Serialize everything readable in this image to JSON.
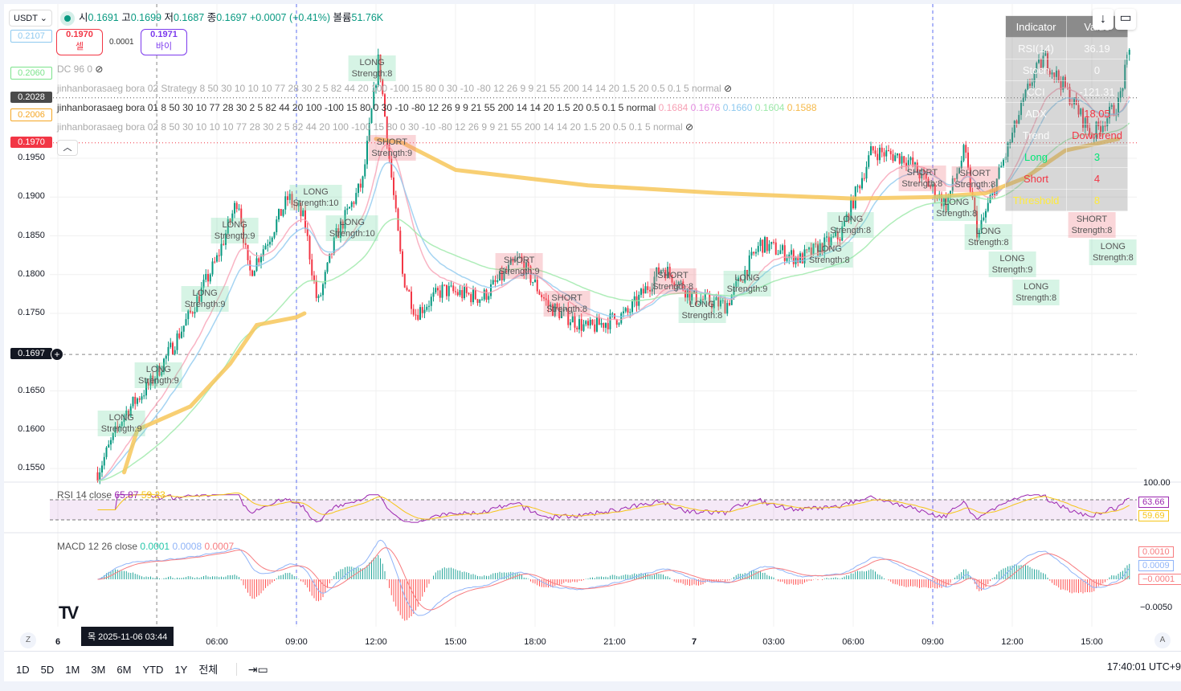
{
  "header": {
    "currency": "USDT",
    "open_label": "시",
    "open": "0.1691",
    "high_label": "고",
    "high": "0.1699",
    "low_label": "저",
    "low": "0.1687",
    "close_label": "종",
    "close": "0.1697",
    "change": "+0.0007 (+0.41%)",
    "volume_label": "볼륨",
    "volume": "51.76K"
  },
  "trade": {
    "sell_price": "0.1970",
    "sell_label": "셀",
    "spread": "0.0001",
    "buy_price": "0.1971",
    "buy_label": "바이"
  },
  "indicators": {
    "dc": "DC 96 0",
    "strategy2": "jinhanborasaeg bora 02 Strategy 8 50 30 10 10 10 77 28 30 2 5 82 44 20 100 -100 15 80 0 30 -10 -80 12 26 9 9 21 55 200 14 14 20 1.5 20 0.5 0.1 5 normal",
    "bora01": "jinhanborasaeg bora 01 8 50 30 10 77 28 30 2 5 82 44 20 100 -100 15 80 0 30 -10 -80 12 26 9 9 21 55 200 14 14 20 1.5 20 0.5 0.1 5 normal",
    "bora01_values": [
      {
        "v": "0.1684",
        "c": "#f7a1b5"
      },
      {
        "v": "0.1676",
        "c": "#e38be0"
      },
      {
        "v": "0.1660",
        "c": "#8ec9ef"
      },
      {
        "v": "0.1604",
        "c": "#9be8a8"
      },
      {
        "v": "0.1588",
        "c": "#f5b94a"
      }
    ],
    "bora02": "jinhanborasaeg bora 02 8 50 30 10 10 10 77 28 30 2 5 82 44 20 100 -100 15 80 0 30 -10 -80 12 26 9 9 21 55 200 14 14 20 1.5 20 0.5 0.1 5 normal"
  },
  "price_axis": {
    "ticks": [
      "0.1950",
      "0.1900",
      "0.1850",
      "0.1800",
      "0.1750",
      "0.1650",
      "0.1600",
      "0.1550"
    ],
    "badges": [
      {
        "v": "0.2107",
        "c": "#8ec9ef",
        "bg": "#fff"
      },
      {
        "v": "0.2060",
        "c": "#7be38b",
        "bg": "#fff"
      },
      {
        "v": "0.2028",
        "c": "#fff",
        "bg": "#4a4a4a"
      },
      {
        "v": "0.2006",
        "c": "#f5a623",
        "bg": "#fff"
      },
      {
        "v": "0.1970",
        "c": "#fff",
        "bg": "#f23645"
      },
      {
        "v": "0.1697",
        "c": "#fff",
        "bg": "#131722"
      }
    ]
  },
  "table": {
    "header": [
      "Indicator",
      "Value"
    ],
    "rows": [
      {
        "k": "RSI(14)",
        "v": "36.19",
        "c": "rgba(255,255,255,.9)"
      },
      {
        "k": "Stoch",
        "v": "0",
        "c": "rgba(255,255,255,.9)"
      },
      {
        "k": "CCI",
        "v": "-121.31",
        "c": "rgba(255,255,255,.9)"
      },
      {
        "k": "ADX",
        "v": "18.05",
        "c": "#f23645"
      },
      {
        "k": "Trend",
        "v": "Downtrend",
        "c": "#f23645",
        "kc": "rgba(255,255,255,.9)"
      },
      {
        "k": "Long",
        "v": "3",
        "c": "#00e676",
        "kc": "#00e676"
      },
      {
        "k": "Short",
        "v": "4",
        "c": "#f23645",
        "kc": "#f23645"
      },
      {
        "k": "Threshold",
        "v": "8",
        "c": "#ffeb3b",
        "kc": "#ffeb3b"
      }
    ]
  },
  "signals": [
    {
      "t": "LONG",
      "s": "Strength:9",
      "h": 2.4,
      "p": 0.1608
    },
    {
      "t": "LONG",
      "s": "Strength:9",
      "h": 3.8,
      "p": 0.167
    },
    {
      "t": "LONG",
      "s": "Strength:9",
      "h": 5.55,
      "p": 0.1769
    },
    {
      "t": "LONG",
      "s": "Strength:9",
      "h": 6.67,
      "p": 0.1857
    },
    {
      "t": "LONG",
      "s": "Strength:10",
      "h": 9.73,
      "p": 0.1899
    },
    {
      "t": "LONG",
      "s": "Strength:10",
      "h": 11.1,
      "p": 0.186
    },
    {
      "t": "LONG",
      "s": "Strength:8",
      "h": 11.85,
      "p": 0.2037
    },
    {
      "t": "SHORT",
      "s": "Strength:9",
      "h": 12.6,
      "p": 0.1972
    },
    {
      "t": "SHORT",
      "s": "Strength:9",
      "h": 17.4,
      "p": 0.1811
    },
    {
      "t": "SHORT",
      "s": "Strength:8",
      "h": 19.2,
      "p": 0.1762
    },
    {
      "t": "SHORT",
      "s": "Strength:8",
      "h": 23.2,
      "p": 0.1791
    },
    {
      "t": "LONG",
      "s": "Strength:8",
      "h": 24.3,
      "p": 0.1762
    },
    {
      "t": "LONG",
      "s": "Strength:9",
      "h": 26,
      "p": 0.1772
    },
    {
      "t": "LONG",
      "s": "Strength:8",
      "h": 29.1,
      "p": 0.1826
    },
    {
      "t": "LONG",
      "s": "Strength:8",
      "h": 29.9,
      "p": 0.1864
    },
    {
      "t": "SHORT",
      "s": "Strength:8",
      "h": 32.6,
      "p": 0.1924
    },
    {
      "t": "LONG",
      "s": "Strength:8",
      "h": 33.9,
      "p": 0.1911
    },
    {
      "t": "SHORT",
      "s": "Strength:8",
      "h": 34.6,
      "p": 0.189
    },
    {
      "t": "LONG",
      "s": "Strength:8",
      "h": 35.1,
      "p": 0.1898
    },
    {
      "t": "LONG",
      "s": "Strength:9",
      "h": 36,
      "p": 0.195
    },
    {
      "t": "LONG",
      "s": "Strength:8",
      "h": 36.9,
      "p": 0.2042
    },
    {
      "t": "SHORT",
      "s": "Strength:8",
      "h": 39,
      "p": 0.2046
    },
    {
      "t": "LONG",
      "s": "Strength:8",
      "h": 39.8,
      "p": 0.2003
    }
  ],
  "price_path": [
    [
      1.5,
      0.1545
    ],
    [
      2.5,
      0.162
    ],
    [
      3.5,
      0.166
    ],
    [
      4.2,
      0.17
    ],
    [
      5,
      0.175
    ],
    [
      6,
      0.182
    ],
    [
      6.8,
      0.19
    ],
    [
      7.2,
      0.18
    ],
    [
      8,
      0.185
    ],
    [
      8.7,
      0.19
    ],
    [
      9.3,
      0.187
    ],
    [
      9.8,
      0.176
    ],
    [
      10.5,
      0.185
    ],
    [
      11.5,
      0.192
    ],
    [
      12.1,
      0.208
    ],
    [
      12.5,
      0.195
    ],
    [
      13,
      0.18
    ],
    [
      13.5,
      0.175
    ],
    [
      14.5,
      0.178
    ],
    [
      16,
      0.177
    ],
    [
      17.4,
      0.182
    ],
    [
      18.5,
      0.176
    ],
    [
      20,
      0.173
    ],
    [
      21.5,
      0.175
    ],
    [
      22.8,
      0.181
    ],
    [
      24,
      0.177
    ],
    [
      25.2,
      0.176
    ],
    [
      26.5,
      0.184
    ],
    [
      28,
      0.182
    ],
    [
      29.5,
      0.185
    ],
    [
      30.7,
      0.196
    ],
    [
      32,
      0.195
    ],
    [
      33.5,
      0.189
    ],
    [
      34.2,
      0.196
    ],
    [
      34.7,
      0.185
    ],
    [
      35.5,
      0.193
    ],
    [
      36.7,
      0.205
    ],
    [
      37.2,
      0.208
    ],
    [
      38,
      0.204
    ],
    [
      39,
      0.198
    ],
    [
      40,
      0.202
    ],
    [
      40.5,
      0.21
    ]
  ],
  "ma_path": [
    [
      [
        2.5,
        0.1545
      ],
      [
        3,
        0.16
      ],
      [
        5,
        0.163
      ],
      [
        6.5,
        0.1685
      ],
      [
        7.5,
        0.1735
      ],
      [
        9,
        0.1745
      ],
      [
        9.3,
        0.175
      ]
    ],
    [
      [
        12,
        0.1975
      ],
      [
        13,
        0.197
      ],
      [
        15,
        0.1935
      ],
      [
        20,
        0.1915
      ],
      [
        25,
        0.1905
      ],
      [
        30,
        0.1898
      ],
      [
        33,
        0.19
      ],
      [
        35,
        0.1905
      ],
      [
        36.5,
        0.1925
      ],
      [
        38,
        0.196
      ],
      [
        40,
        0.1975
      ]
    ]
  ],
  "rsi": {
    "title": "RSI 14 close",
    "v1": "65.87",
    "v2": "59.23",
    "axis_top": "100.00",
    "badge1": "63.66",
    "badge2": "59.69"
  },
  "macd": {
    "title": "MACD 12 26 close",
    "v1": "0.0001",
    "v2": "0.0008",
    "v3": "0.0007",
    "badge1": "0.0010",
    "badge2": "0.0009",
    "badge3": "−0.0001",
    "axis": "−0.0050"
  },
  "time_axis": {
    "labels": [
      {
        "t": "6",
        "h": 0,
        "b": true
      },
      {
        "t": "06:00",
        "h": 6
      },
      {
        "t": "09:00",
        "h": 9
      },
      {
        "t": "12:00",
        "h": 12
      },
      {
        "t": "15:00",
        "h": 15
      },
      {
        "t": "18:00",
        "h": 18
      },
      {
        "t": "21:00",
        "h": 21
      },
      {
        "t": "7",
        "h": 24,
        "b": true
      },
      {
        "t": "03:00",
        "h": 27
      },
      {
        "t": "06:00",
        "h": 30
      },
      {
        "t": "09:00",
        "h": 33
      },
      {
        "t": "12:00",
        "h": 36
      },
      {
        "t": "15:00",
        "h": 39
      }
    ],
    "crosshair": "목 2025-11-06  03:44",
    "z": "Z",
    "a": "A"
  },
  "toolbar": {
    "ranges": [
      "1D",
      "5D",
      "1M",
      "3M",
      "6M",
      "YTD",
      "1Y",
      "전체"
    ],
    "clock": "17:40:01 UTC+9"
  },
  "colors": {
    "up": "#089981",
    "down": "#f23645"
  }
}
